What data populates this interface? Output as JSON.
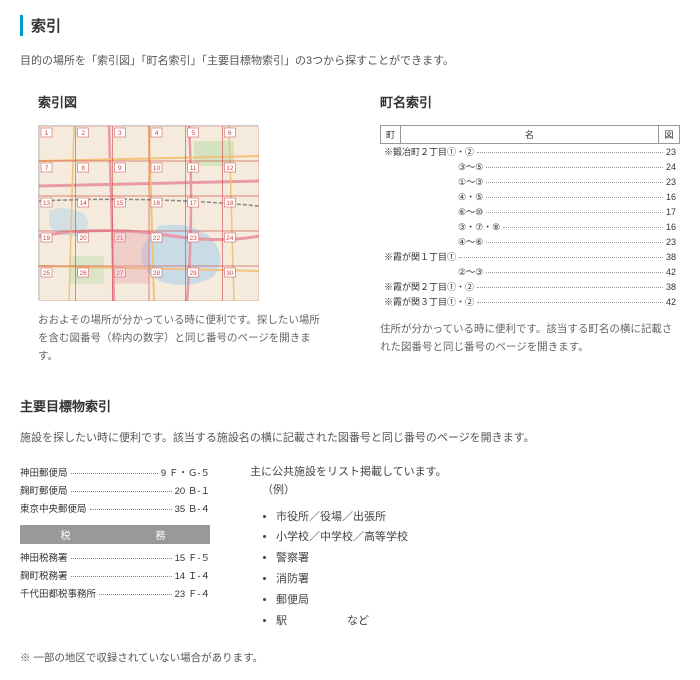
{
  "title": "索引",
  "intro": "目的の場所を「索引図」「町名索引」「主要目標物索引」の3つから探すことができます。",
  "indexMap": {
    "title": "索引図",
    "desc": "おおよその場所が分かっている時に便利です。探したい場所を含む図番号（枠内の数字）と同じ番号のページを開きます。"
  },
  "townIndex": {
    "title": "町名索引",
    "header": {
      "machi": "町",
      "name": "名",
      "zu": "図"
    },
    "rows": [
      {
        "label": "※鍛冶町２丁目①・②",
        "page": "23"
      },
      {
        "label": "③～⑤",
        "page": "24",
        "indent": 78
      },
      {
        "label": "①～③",
        "page": "23",
        "indent": 78
      },
      {
        "label": "④・⑤",
        "page": "16",
        "indent": 78
      },
      {
        "label": "⑥～⑩",
        "page": "17",
        "indent": 78
      },
      {
        "label": "③・⑦・⑧",
        "page": "16",
        "indent": 78
      },
      {
        "label": "④～⑥",
        "page": "23",
        "indent": 78
      },
      {
        "label": "※霞が関１丁目①",
        "page": "38"
      },
      {
        "label": "②～③",
        "page": "42",
        "indent": 78
      },
      {
        "label": "※霞が関２丁目①・②",
        "page": "38"
      },
      {
        "label": "※霞が関３丁目①・②",
        "page": "42"
      }
    ],
    "desc": "住所が分かっている時に便利です。該当する町名の横に記載された図番号と同じ番号のページを開きます。"
  },
  "landmark": {
    "title": "主要目標物索引",
    "desc": "施設を探したい時に便利です。該当する施設名の横に記載された図番号と同じ番号のページを開きます。",
    "postRows": [
      {
        "label": "神田郵便局",
        "val": "9  Ｆ・Ｇ-５"
      },
      {
        "label": "麹町郵便局",
        "val": "20  Ｂ-１"
      },
      {
        "label": "東京中央郵便局",
        "val": "35  Ｂ-４"
      }
    ],
    "taxHeader": {
      "left": "税",
      "right": "務"
    },
    "taxRows": [
      {
        "label": "神田税務署",
        "val": "15  Ｆ-５"
      },
      {
        "label": "麹町税務署",
        "val": "14  Ｉ-４"
      },
      {
        "label": "千代田都税事務所",
        "val": "23  Ｆ-４"
      }
    ],
    "rightIntro": "主に公共施設をリスト掲載しています。",
    "example": "（例）",
    "list": [
      "市役所／役場／出張所",
      "小学校／中学校／高等学校",
      "警察署",
      "消防署",
      "郵便局"
    ],
    "lastItem": "駅",
    "etc": "など"
  },
  "footnote": "※ 一部の地区で収録されていない場合があります。",
  "mapColors": {
    "bg": "#f5ebdc",
    "water": "#bdd7e8",
    "park": "#c9e0b5",
    "road1": "#e89aa8",
    "road2": "#f2c27a",
    "rail": "#888",
    "gridFrame": "#c44",
    "numBox": "#fff",
    "numBorder": "#c44",
    "numText": "#c44"
  }
}
